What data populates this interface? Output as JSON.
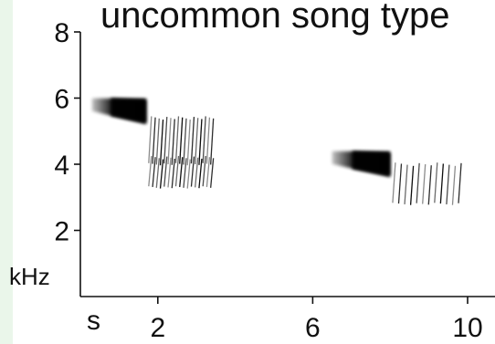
{
  "chart_data": {
    "type": "spectrogram",
    "title": "uncommon song type",
    "ylabel": "kHz",
    "x_start_label": "s",
    "xticks": [
      2,
      6,
      10
    ],
    "yticks": [
      2,
      4,
      6,
      8
    ],
    "xlim": [
      0,
      10
    ],
    "ylim": [
      0,
      8
    ],
    "notes": [
      {
        "kind": "tonal",
        "t_start": 0.3,
        "t_end": 1.7,
        "f_start": 5.8,
        "f_end": 5.6,
        "peak_intensity": 0.95
      },
      {
        "kind": "trill",
        "t_start": 1.8,
        "t_end": 3.4,
        "f_low": 4.0,
        "f_high": 5.4,
        "pulses": 17
      },
      {
        "kind": "trill",
        "t_start": 1.8,
        "t_end": 3.4,
        "f_low": 3.3,
        "f_high": 4.2,
        "pulses": 17
      },
      {
        "kind": "tonal",
        "t_start": 6.5,
        "t_end": 8.0,
        "f_start": 4.2,
        "f_end": 4.0,
        "peak_intensity": 0.95
      },
      {
        "kind": "trill",
        "t_start": 8.1,
        "t_end": 9.8,
        "f_low": 2.8,
        "f_high": 4.0,
        "pulses": 12
      }
    ]
  }
}
